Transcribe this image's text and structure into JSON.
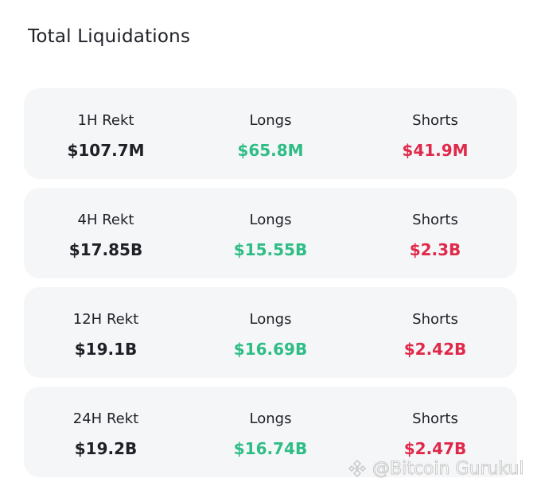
{
  "title": "Total Liquidations",
  "colors": {
    "longs": "#2ebd85",
    "shorts": "#e0294a",
    "card_bg": "#f5f6f8"
  },
  "rows": [
    {
      "label": "1H  Rekt",
      "total": "$107.7M",
      "longs_label": "Longs",
      "longs": "$65.8M",
      "shorts_label": "Shorts",
      "shorts": "$41.9M"
    },
    {
      "label": "4H Rekt",
      "total": "$17.85B",
      "longs_label": "Longs",
      "longs": "$15.55B",
      "shorts_label": "Shorts",
      "shorts": "$2.3B"
    },
    {
      "label": "12H Rekt",
      "total": "$19.1B",
      "longs_label": "Longs",
      "longs": "$16.69B",
      "shorts_label": "Shorts",
      "shorts": "$2.42B"
    },
    {
      "label": "24H Rekt",
      "total": "$19.2B",
      "longs_label": "Longs",
      "longs": "$16.74B",
      "shorts_label": "Shorts",
      "shorts": "$2.47B"
    }
  ],
  "watermark": {
    "text": "@Bitcoin Gurukul",
    "icon": "binance-logo-icon"
  }
}
